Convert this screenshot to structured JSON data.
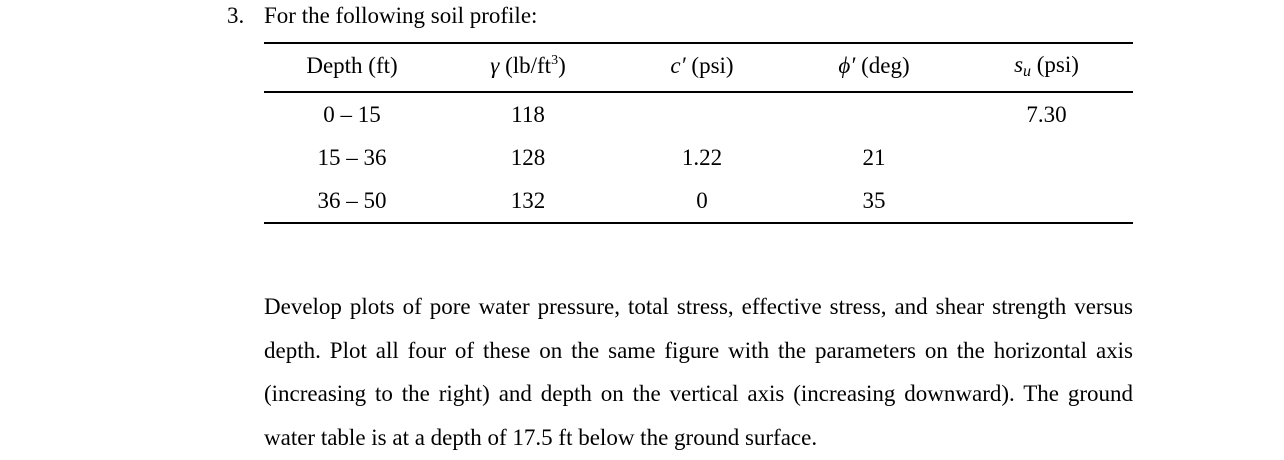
{
  "problem": {
    "number": "3.",
    "heading": "For the following soil profile:"
  },
  "table": {
    "headers": {
      "depth": "Depth (ft)",
      "gamma_symbol": "γ",
      "gamma_unit_open": " (lb/ft",
      "gamma_unit_sup": "3",
      "gamma_unit_close": ")",
      "c_symbol": "c′",
      "c_unit": " (psi)",
      "phi_symbol": "ϕ′",
      "phi_unit": " (deg)",
      "su_symbol": "s",
      "su_sub": "u",
      "su_unit": " (psi)"
    },
    "rows": [
      {
        "depth": "0 – 15",
        "gamma": "118",
        "c": "",
        "phi": "",
        "su": "7.30"
      },
      {
        "depth": "15 – 36",
        "gamma": "128",
        "c": "1.22",
        "phi": "21",
        "su": ""
      },
      {
        "depth": "36 – 50",
        "gamma": "132",
        "c": "0",
        "phi": "35",
        "su": ""
      }
    ]
  },
  "paragraph": "Develop plots of pore water pressure, total stress, effective stress, and shear strength versus depth. Plot all four of these on the same figure with the parameters on the horizontal axis (increasing to the right) and depth on the vertical axis (increasing downward). The ground water table is at a depth of 17.5 ft below the ground surface."
}
